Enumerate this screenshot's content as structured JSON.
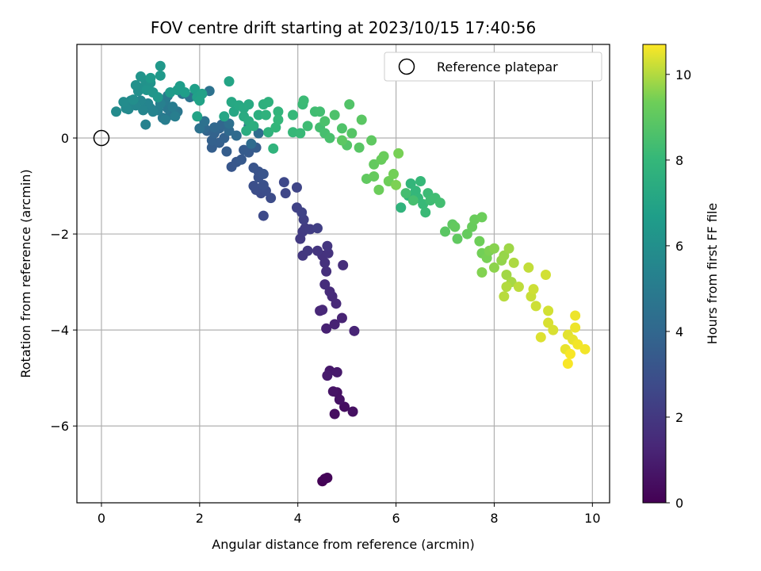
{
  "chart_data": {
    "type": "scatter",
    "title": "FOV centre drift starting at 2023/10/15 17:40:56",
    "xlabel": "Angular distance from reference (arcmin)",
    "ylabel": "Rotation from reference (arcmin)",
    "xlim": [
      -0.5,
      10.35
    ],
    "ylim": [
      -7.6,
      1.95
    ],
    "xticks": [
      0,
      2,
      4,
      6,
      8,
      10
    ],
    "yticks": [
      -6,
      -4,
      -2,
      0
    ],
    "grid": true,
    "legend": {
      "position": "top-right",
      "entries": [
        "Reference platepar"
      ]
    },
    "reference_point": {
      "x": 0,
      "y": 0
    },
    "colorbar": {
      "label": "Hours from first FF file",
      "range": [
        0,
        10.7
      ],
      "ticks": [
        0,
        2,
        4,
        6,
        8,
        10
      ],
      "colormap": "viridis"
    },
    "points": [
      {
        "x": 4.5,
        "y": -7.15,
        "c": 0.05
      },
      {
        "x": 4.55,
        "y": -7.1,
        "c": 0.1
      },
      {
        "x": 4.6,
        "y": -7.08,
        "c": 0.15
      },
      {
        "x": 4.75,
        "y": -5.75,
        "c": 0.4
      },
      {
        "x": 4.95,
        "y": -5.6,
        "c": 0.45
      },
      {
        "x": 5.12,
        "y": -5.7,
        "c": 0.5
      },
      {
        "x": 4.8,
        "y": -5.3,
        "c": 0.55
      },
      {
        "x": 4.85,
        "y": -5.45,
        "c": 0.6
      },
      {
        "x": 4.72,
        "y": -5.28,
        "c": 0.65
      },
      {
        "x": 4.65,
        "y": -4.85,
        "c": 0.8
      },
      {
        "x": 4.8,
        "y": -4.88,
        "c": 0.85
      },
      {
        "x": 4.6,
        "y": -4.95,
        "c": 0.9
      },
      {
        "x": 4.58,
        "y": -3.97,
        "c": 1.1
      },
      {
        "x": 4.75,
        "y": -3.88,
        "c": 1.15
      },
      {
        "x": 4.9,
        "y": -3.75,
        "c": 1.2
      },
      {
        "x": 5.15,
        "y": -4.02,
        "c": 1.25
      },
      {
        "x": 4.45,
        "y": -3.6,
        "c": 1.3
      },
      {
        "x": 4.5,
        "y": -3.58,
        "c": 1.35
      },
      {
        "x": 4.78,
        "y": -3.45,
        "c": 1.4
      },
      {
        "x": 4.7,
        "y": -3.3,
        "c": 1.45
      },
      {
        "x": 4.65,
        "y": -3.2,
        "c": 1.5
      },
      {
        "x": 4.55,
        "y": -3.05,
        "c": 1.55
      },
      {
        "x": 4.92,
        "y": -2.65,
        "c": 1.6
      },
      {
        "x": 4.58,
        "y": -2.78,
        "c": 1.65
      },
      {
        "x": 4.55,
        "y": -2.6,
        "c": 1.7
      },
      {
        "x": 4.5,
        "y": -2.45,
        "c": 1.75
      },
      {
        "x": 4.62,
        "y": -2.4,
        "c": 1.8
      },
      {
        "x": 4.4,
        "y": -2.35,
        "c": 1.85
      },
      {
        "x": 4.6,
        "y": -2.25,
        "c": 1.9
      },
      {
        "x": 4.1,
        "y": -2.45,
        "c": 1.95
      },
      {
        "x": 4.2,
        "y": -2.35,
        "c": 2.0
      },
      {
        "x": 4.05,
        "y": -2.1,
        "c": 2.05
      },
      {
        "x": 4.1,
        "y": -1.95,
        "c": 2.1
      },
      {
        "x": 4.15,
        "y": -1.88,
        "c": 2.15
      },
      {
        "x": 4.25,
        "y": -1.9,
        "c": 2.2
      },
      {
        "x": 4.4,
        "y": -1.88,
        "c": 2.25
      },
      {
        "x": 4.12,
        "y": -1.7,
        "c": 2.3
      },
      {
        "x": 3.98,
        "y": -1.45,
        "c": 2.4
      },
      {
        "x": 4.08,
        "y": -1.55,
        "c": 2.45
      },
      {
        "x": 3.98,
        "y": -1.03,
        "c": 2.5
      },
      {
        "x": 3.75,
        "y": -1.15,
        "c": 2.6
      },
      {
        "x": 3.72,
        "y": -0.92,
        "c": 2.65
      },
      {
        "x": 3.3,
        "y": -1.62,
        "c": 2.7
      },
      {
        "x": 3.25,
        "y": -1.15,
        "c": 2.75
      },
      {
        "x": 3.45,
        "y": -1.25,
        "c": 2.8
      },
      {
        "x": 3.35,
        "y": -1.1,
        "c": 2.85
      },
      {
        "x": 3.15,
        "y": -1.08,
        "c": 2.9
      },
      {
        "x": 3.1,
        "y": -1.0,
        "c": 2.95
      },
      {
        "x": 3.3,
        "y": -0.98,
        "c": 3.0
      },
      {
        "x": 3.2,
        "y": -0.82,
        "c": 3.05
      },
      {
        "x": 3.2,
        "y": -0.7,
        "c": 3.1
      },
      {
        "x": 3.1,
        "y": -0.62,
        "c": 3.15
      },
      {
        "x": 3.3,
        "y": -0.75,
        "c": 3.2
      },
      {
        "x": 2.65,
        "y": -0.6,
        "c": 3.25
      },
      {
        "x": 2.75,
        "y": -0.5,
        "c": 3.3
      },
      {
        "x": 2.85,
        "y": -0.45,
        "c": 3.35
      },
      {
        "x": 3.0,
        "y": -0.3,
        "c": 3.4
      },
      {
        "x": 2.9,
        "y": -0.25,
        "c": 3.45
      },
      {
        "x": 3.15,
        "y": -0.2,
        "c": 3.5
      },
      {
        "x": 2.55,
        "y": -0.28,
        "c": 3.55
      },
      {
        "x": 2.25,
        "y": -0.2,
        "c": 3.6
      },
      {
        "x": 2.4,
        "y": -0.1,
        "c": 3.65
      },
      {
        "x": 2.25,
        "y": -0.05,
        "c": 3.7
      },
      {
        "x": 2.5,
        "y": 0.0,
        "c": 3.75
      },
      {
        "x": 2.3,
        "y": 0.1,
        "c": 3.8
      },
      {
        "x": 2.15,
        "y": 0.15,
        "c": 3.85
      },
      {
        "x": 2.4,
        "y": 0.2,
        "c": 3.9
      },
      {
        "x": 2.45,
        "y": 0.28,
        "c": 3.95
      },
      {
        "x": 2.3,
        "y": 0.22,
        "c": 4.0
      },
      {
        "x": 2.1,
        "y": 0.2,
        "c": 4.05
      },
      {
        "x": 2.6,
        "y": 0.15,
        "c": 4.1
      },
      {
        "x": 2.75,
        "y": 0.05,
        "c": 4.15
      },
      {
        "x": 3.05,
        "y": -0.12,
        "c": 4.2
      },
      {
        "x": 3.2,
        "y": 0.1,
        "c": 4.25
      },
      {
        "x": 3.0,
        "y": 0.25,
        "c": 4.3
      },
      {
        "x": 2.6,
        "y": 0.3,
        "c": 4.4
      },
      {
        "x": 2.0,
        "y": 0.2,
        "c": 4.45
      },
      {
        "x": 2.1,
        "y": 0.35,
        "c": 4.5
      },
      {
        "x": 2.2,
        "y": 0.98,
        "c": 4.55
      },
      {
        "x": 1.8,
        "y": 0.85,
        "c": 4.6
      },
      {
        "x": 1.65,
        "y": 0.92,
        "c": 4.7
      },
      {
        "x": 1.4,
        "y": 0.48,
        "c": 4.75
      },
      {
        "x": 1.55,
        "y": 0.55,
        "c": 4.8
      },
      {
        "x": 1.35,
        "y": 0.62,
        "c": 4.85
      },
      {
        "x": 1.25,
        "y": 0.42,
        "c": 4.9
      },
      {
        "x": 1.3,
        "y": 0.78,
        "c": 4.95
      },
      {
        "x": 1.35,
        "y": 0.88,
        "c": 5.0
      },
      {
        "x": 1.45,
        "y": 0.65,
        "c": 5.05
      },
      {
        "x": 1.3,
        "y": 0.38,
        "c": 5.1
      },
      {
        "x": 1.5,
        "y": 0.45,
        "c": 5.15
      },
      {
        "x": 1.15,
        "y": 0.58,
        "c": 5.2
      },
      {
        "x": 1.2,
        "y": 0.72,
        "c": 5.25
      },
      {
        "x": 1.0,
        "y": 0.62,
        "c": 5.3
      },
      {
        "x": 0.9,
        "y": 0.28,
        "c": 5.35
      },
      {
        "x": 1.05,
        "y": 0.55,
        "c": 5.4
      },
      {
        "x": 0.95,
        "y": 0.72,
        "c": 5.45
      },
      {
        "x": 0.85,
        "y": 0.58,
        "c": 5.5
      },
      {
        "x": 0.8,
        "y": 0.78,
        "c": 5.55
      },
      {
        "x": 0.7,
        "y": 0.68,
        "c": 5.6
      },
      {
        "x": 0.55,
        "y": 0.6,
        "c": 5.65
      },
      {
        "x": 0.6,
        "y": 0.78,
        "c": 5.7
      },
      {
        "x": 0.5,
        "y": 0.62,
        "c": 5.75
      },
      {
        "x": 0.3,
        "y": 0.55,
        "c": 5.8
      },
      {
        "x": 0.45,
        "y": 0.75,
        "c": 5.85
      },
      {
        "x": 0.65,
        "y": 0.8,
        "c": 5.9
      },
      {
        "x": 0.75,
        "y": 0.98,
        "c": 5.95
      },
      {
        "x": 0.85,
        "y": 1.05,
        "c": 6.0
      },
      {
        "x": 0.7,
        "y": 1.1,
        "c": 6.05
      },
      {
        "x": 0.9,
        "y": 1.18,
        "c": 6.1
      },
      {
        "x": 1.0,
        "y": 1.15,
        "c": 6.15
      },
      {
        "x": 0.8,
        "y": 1.28,
        "c": 6.2
      },
      {
        "x": 0.92,
        "y": 1.0,
        "c": 6.25
      },
      {
        "x": 1.05,
        "y": 0.95,
        "c": 6.3
      },
      {
        "x": 1.15,
        "y": 0.85,
        "c": 6.35
      },
      {
        "x": 1.2,
        "y": 1.5,
        "c": 6.4
      },
      {
        "x": 1.2,
        "y": 1.3,
        "c": 6.45
      },
      {
        "x": 1.0,
        "y": 1.25,
        "c": 6.5
      },
      {
        "x": 1.4,
        "y": 0.95,
        "c": 6.55
      },
      {
        "x": 1.55,
        "y": 1.0,
        "c": 6.6
      },
      {
        "x": 1.6,
        "y": 1.08,
        "c": 6.65
      },
      {
        "x": 1.7,
        "y": 0.95,
        "c": 6.7
      },
      {
        "x": 1.9,
        "y": 1.02,
        "c": 6.75
      },
      {
        "x": 1.95,
        "y": 0.85,
        "c": 6.8
      },
      {
        "x": 2.05,
        "y": 0.92,
        "c": 6.85
      },
      {
        "x": 2.0,
        "y": 0.78,
        "c": 6.9
      },
      {
        "x": 1.95,
        "y": 0.45,
        "c": 6.95
      },
      {
        "x": 2.6,
        "y": 1.18,
        "c": 7.0
      },
      {
        "x": 2.5,
        "y": 0.45,
        "c": 7.05
      },
      {
        "x": 2.7,
        "y": 0.55,
        "c": 7.1
      },
      {
        "x": 2.65,
        "y": 0.75,
        "c": 7.15
      },
      {
        "x": 2.8,
        "y": 0.68,
        "c": 7.2
      },
      {
        "x": 2.9,
        "y": 0.62,
        "c": 7.25
      },
      {
        "x": 3.0,
        "y": 0.7,
        "c": 7.3
      },
      {
        "x": 2.9,
        "y": 0.45,
        "c": 7.35
      },
      {
        "x": 3.0,
        "y": 0.35,
        "c": 7.4
      },
      {
        "x": 2.95,
        "y": 0.15,
        "c": 7.45
      },
      {
        "x": 3.1,
        "y": 0.25,
        "c": 7.5
      },
      {
        "x": 3.2,
        "y": 0.48,
        "c": 7.55
      },
      {
        "x": 3.3,
        "y": 0.7,
        "c": 7.6
      },
      {
        "x": 3.4,
        "y": 0.75,
        "c": 7.65
      },
      {
        "x": 3.35,
        "y": 0.48,
        "c": 7.7
      },
      {
        "x": 3.4,
        "y": 0.12,
        "c": 7.75
      },
      {
        "x": 3.5,
        "y": -0.22,
        "c": 7.8
      },
      {
        "x": 3.6,
        "y": 0.55,
        "c": 7.85
      },
      {
        "x": 3.55,
        "y": 0.22,
        "c": 7.9
      },
      {
        "x": 3.6,
        "y": 0.38,
        "c": 7.95
      },
      {
        "x": 3.9,
        "y": 0.48,
        "c": 8.0
      },
      {
        "x": 3.9,
        "y": 0.12,
        "c": 8.05
      },
      {
        "x": 4.05,
        "y": 0.1,
        "c": 8.1
      },
      {
        "x": 4.1,
        "y": 0.7,
        "c": 8.15
      },
      {
        "x": 4.12,
        "y": 0.78,
        "c": 8.2
      },
      {
        "x": 4.2,
        "y": 0.25,
        "c": 8.25
      },
      {
        "x": 4.35,
        "y": 0.55,
        "c": 8.3
      },
      {
        "x": 4.45,
        "y": 0.55,
        "c": 8.35
      },
      {
        "x": 4.45,
        "y": 0.22,
        "c": 8.4
      },
      {
        "x": 4.55,
        "y": 0.1,
        "c": 8.45
      },
      {
        "x": 4.65,
        "y": 0.0,
        "c": 8.5
      },
      {
        "x": 4.55,
        "y": 0.35,
        "c": 8.55
      },
      {
        "x": 4.75,
        "y": 0.48,
        "c": 8.6
      },
      {
        "x": 4.9,
        "y": 0.2,
        "c": 8.65
      },
      {
        "x": 5.05,
        "y": 0.7,
        "c": 8.7
      },
      {
        "x": 5.0,
        "y": -0.15,
        "c": 8.75
      },
      {
        "x": 5.1,
        "y": 0.1,
        "c": 8.8
      },
      {
        "x": 5.25,
        "y": -0.2,
        "c": 8.85
      },
      {
        "x": 5.3,
        "y": 0.38,
        "c": 8.9
      },
      {
        "x": 4.9,
        "y": -0.05,
        "c": 8.95
      },
      {
        "x": 5.5,
        "y": -0.05,
        "c": 9.0
      },
      {
        "x": 5.4,
        "y": -0.85,
        "c": 9.05
      },
      {
        "x": 5.55,
        "y": -0.55,
        "c": 9.1
      },
      {
        "x": 5.55,
        "y": -0.8,
        "c": 9.15
      },
      {
        "x": 5.7,
        "y": -0.45,
        "c": 9.2
      },
      {
        "x": 5.75,
        "y": -0.38,
        "c": 9.25
      },
      {
        "x": 5.65,
        "y": -1.08,
        "c": 9.3
      },
      {
        "x": 5.85,
        "y": -0.9,
        "c": 9.35
      },
      {
        "x": 5.95,
        "y": -0.75,
        "c": 9.4
      },
      {
        "x": 6.05,
        "y": -0.32,
        "c": 9.45
      },
      {
        "x": 6.0,
        "y": -0.98,
        "c": 9.5
      }
    ],
    "points_2": [
      {
        "x": 6.1,
        "y": -1.45,
        "c": 7.8
      },
      {
        "x": 6.25,
        "y": -1.2,
        "c": 7.85
      },
      {
        "x": 6.3,
        "y": -0.95,
        "c": 7.9
      },
      {
        "x": 6.4,
        "y": -1.1,
        "c": 7.95
      },
      {
        "x": 6.45,
        "y": -1.25,
        "c": 8.0
      },
      {
        "x": 6.5,
        "y": -0.9,
        "c": 8.05
      },
      {
        "x": 6.55,
        "y": -1.38,
        "c": 8.1
      },
      {
        "x": 6.6,
        "y": -1.55,
        "c": 8.15
      },
      {
        "x": 6.65,
        "y": -1.15,
        "c": 8.2
      },
      {
        "x": 6.7,
        "y": -1.3,
        "c": 8.25
      },
      {
        "x": 6.8,
        "y": -1.25,
        "c": 8.3
      },
      {
        "x": 6.9,
        "y": -1.35,
        "c": 8.35
      },
      {
        "x": 6.2,
        "y": -1.15,
        "c": 8.4
      },
      {
        "x": 6.35,
        "y": -1.3,
        "c": 8.45
      },
      {
        "x": 7.0,
        "y": -1.95,
        "c": 8.9
      },
      {
        "x": 7.15,
        "y": -1.8,
        "c": 9.0
      },
      {
        "x": 7.25,
        "y": -2.1,
        "c": 9.05
      },
      {
        "x": 7.2,
        "y": -1.85,
        "c": 9.1
      },
      {
        "x": 7.45,
        "y": -2.0,
        "c": 9.15
      },
      {
        "x": 7.55,
        "y": -1.85,
        "c": 9.2
      },
      {
        "x": 7.6,
        "y": -1.7,
        "c": 9.25
      },
      {
        "x": 7.75,
        "y": -1.65,
        "c": 9.3
      },
      {
        "x": 7.7,
        "y": -2.15,
        "c": 9.35
      },
      {
        "x": 7.75,
        "y": -2.4,
        "c": 9.4
      },
      {
        "x": 7.85,
        "y": -2.5,
        "c": 9.45
      },
      {
        "x": 7.9,
        "y": -2.35,
        "c": 9.5
      },
      {
        "x": 7.75,
        "y": -2.8,
        "c": 9.55
      },
      {
        "x": 8.0,
        "y": -2.3,
        "c": 9.6
      },
      {
        "x": 8.0,
        "y": -2.7,
        "c": 9.65
      },
      {
        "x": 8.15,
        "y": -2.55,
        "c": 9.7
      },
      {
        "x": 8.2,
        "y": -2.45,
        "c": 9.75
      },
      {
        "x": 8.3,
        "y": -2.3,
        "c": 9.8
      },
      {
        "x": 8.25,
        "y": -2.85,
        "c": 9.85
      },
      {
        "x": 8.35,
        "y": -3.0,
        "c": 9.9
      },
      {
        "x": 8.4,
        "y": -2.6,
        "c": 9.95
      },
      {
        "x": 8.25,
        "y": -3.1,
        "c": 10.0
      },
      {
        "x": 8.2,
        "y": -3.3,
        "c": 10.05
      },
      {
        "x": 8.5,
        "y": -3.1,
        "c": 10.1
      },
      {
        "x": 8.7,
        "y": -2.7,
        "c": 10.15
      },
      {
        "x": 8.75,
        "y": -3.3,
        "c": 10.2
      },
      {
        "x": 8.85,
        "y": -3.5,
        "c": 10.25
      },
      {
        "x": 8.8,
        "y": -3.15,
        "c": 10.25
      },
      {
        "x": 9.05,
        "y": -2.85,
        "c": 10.3
      },
      {
        "x": 9.1,
        "y": -3.6,
        "c": 10.3
      },
      {
        "x": 9.1,
        "y": -3.85,
        "c": 10.35
      },
      {
        "x": 9.2,
        "y": -4.0,
        "c": 10.35
      },
      {
        "x": 8.95,
        "y": -4.15,
        "c": 10.4
      },
      {
        "x": 9.5,
        "y": -4.1,
        "c": 10.45
      },
      {
        "x": 9.45,
        "y": -4.4,
        "c": 10.5
      },
      {
        "x": 9.6,
        "y": -4.2,
        "c": 10.5
      },
      {
        "x": 9.65,
        "y": -3.7,
        "c": 10.55
      },
      {
        "x": 9.65,
        "y": -3.95,
        "c": 10.55
      },
      {
        "x": 9.7,
        "y": -4.3,
        "c": 10.6
      },
      {
        "x": 9.85,
        "y": -4.4,
        "c": 10.6
      },
      {
        "x": 9.5,
        "y": -4.7,
        "c": 10.65
      },
      {
        "x": 9.55,
        "y": -4.5,
        "c": 10.65
      }
    ]
  }
}
